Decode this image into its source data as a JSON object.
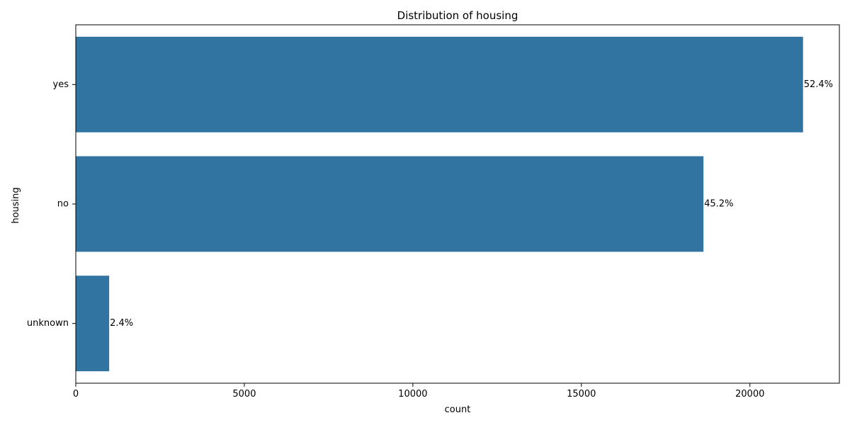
{
  "chart_data": {
    "type": "bar",
    "orientation": "horizontal",
    "title": "Distribution of housing",
    "xlabel": "count",
    "ylabel": "housing",
    "categories": [
      "yes",
      "no",
      "unknown"
    ],
    "values": [
      21576,
      18622,
      990
    ],
    "data_labels": [
      "52.4%",
      "45.2%",
      "2.4%"
    ],
    "xlim": [
      0,
      22654
    ],
    "xticks": [
      0,
      5000,
      10000,
      15000,
      20000
    ],
    "xtick_labels": [
      "0",
      "5000",
      "10000",
      "15000",
      "20000"
    ],
    "grid": false,
    "bar_color": "#3274a1"
  }
}
